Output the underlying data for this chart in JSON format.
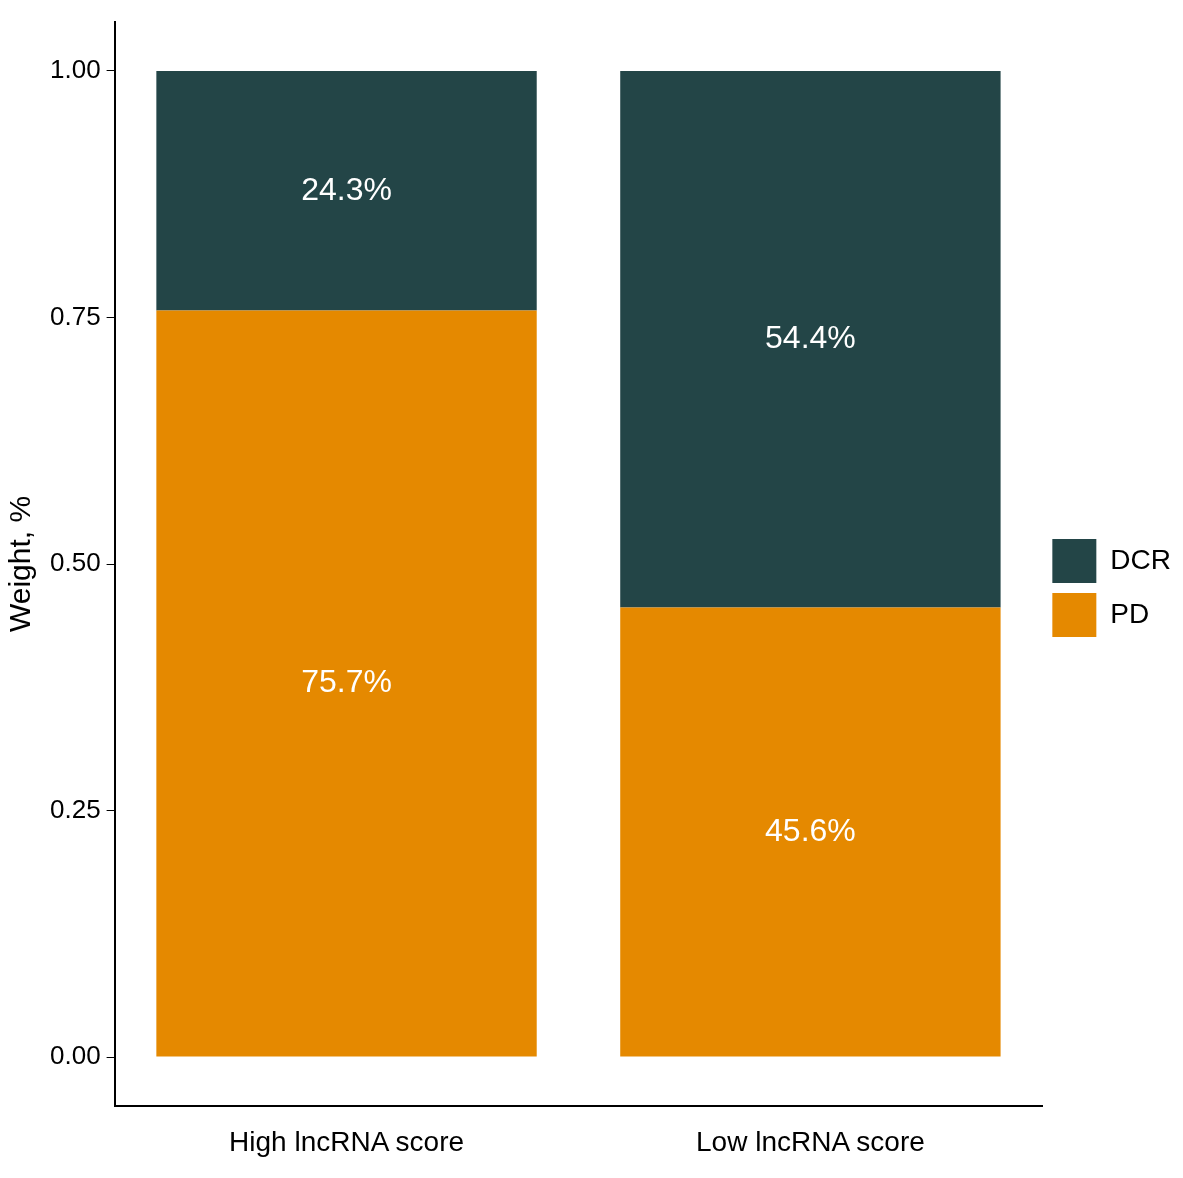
{
  "chart_data": {
    "type": "bar",
    "stacked": true,
    "ylabel": "Weight, %",
    "categories": [
      "High lncRNA score",
      "Low lncRNA score"
    ],
    "series": [
      {
        "name": "PD",
        "color": "#e58900",
        "values": [
          0.757,
          0.456
        ],
        "value_labels": [
          "75.7%",
          "45.6%"
        ]
      },
      {
        "name": "DCR",
        "color": "#234547",
        "values": [
          0.243,
          0.544
        ],
        "value_labels": [
          "24.3%",
          "54.4%"
        ]
      }
    ],
    "ylim": [
      -0.05,
      1.05
    ],
    "yticks": [
      {
        "value": 0,
        "label": "0.00"
      },
      {
        "value": 0.25,
        "label": "0.25"
      },
      {
        "value": 0.5,
        "label": "0.50"
      },
      {
        "value": 0.75,
        "label": "0.75"
      },
      {
        "value": 1,
        "label": "1.00"
      }
    ],
    "grid": false,
    "legend": "right"
  }
}
